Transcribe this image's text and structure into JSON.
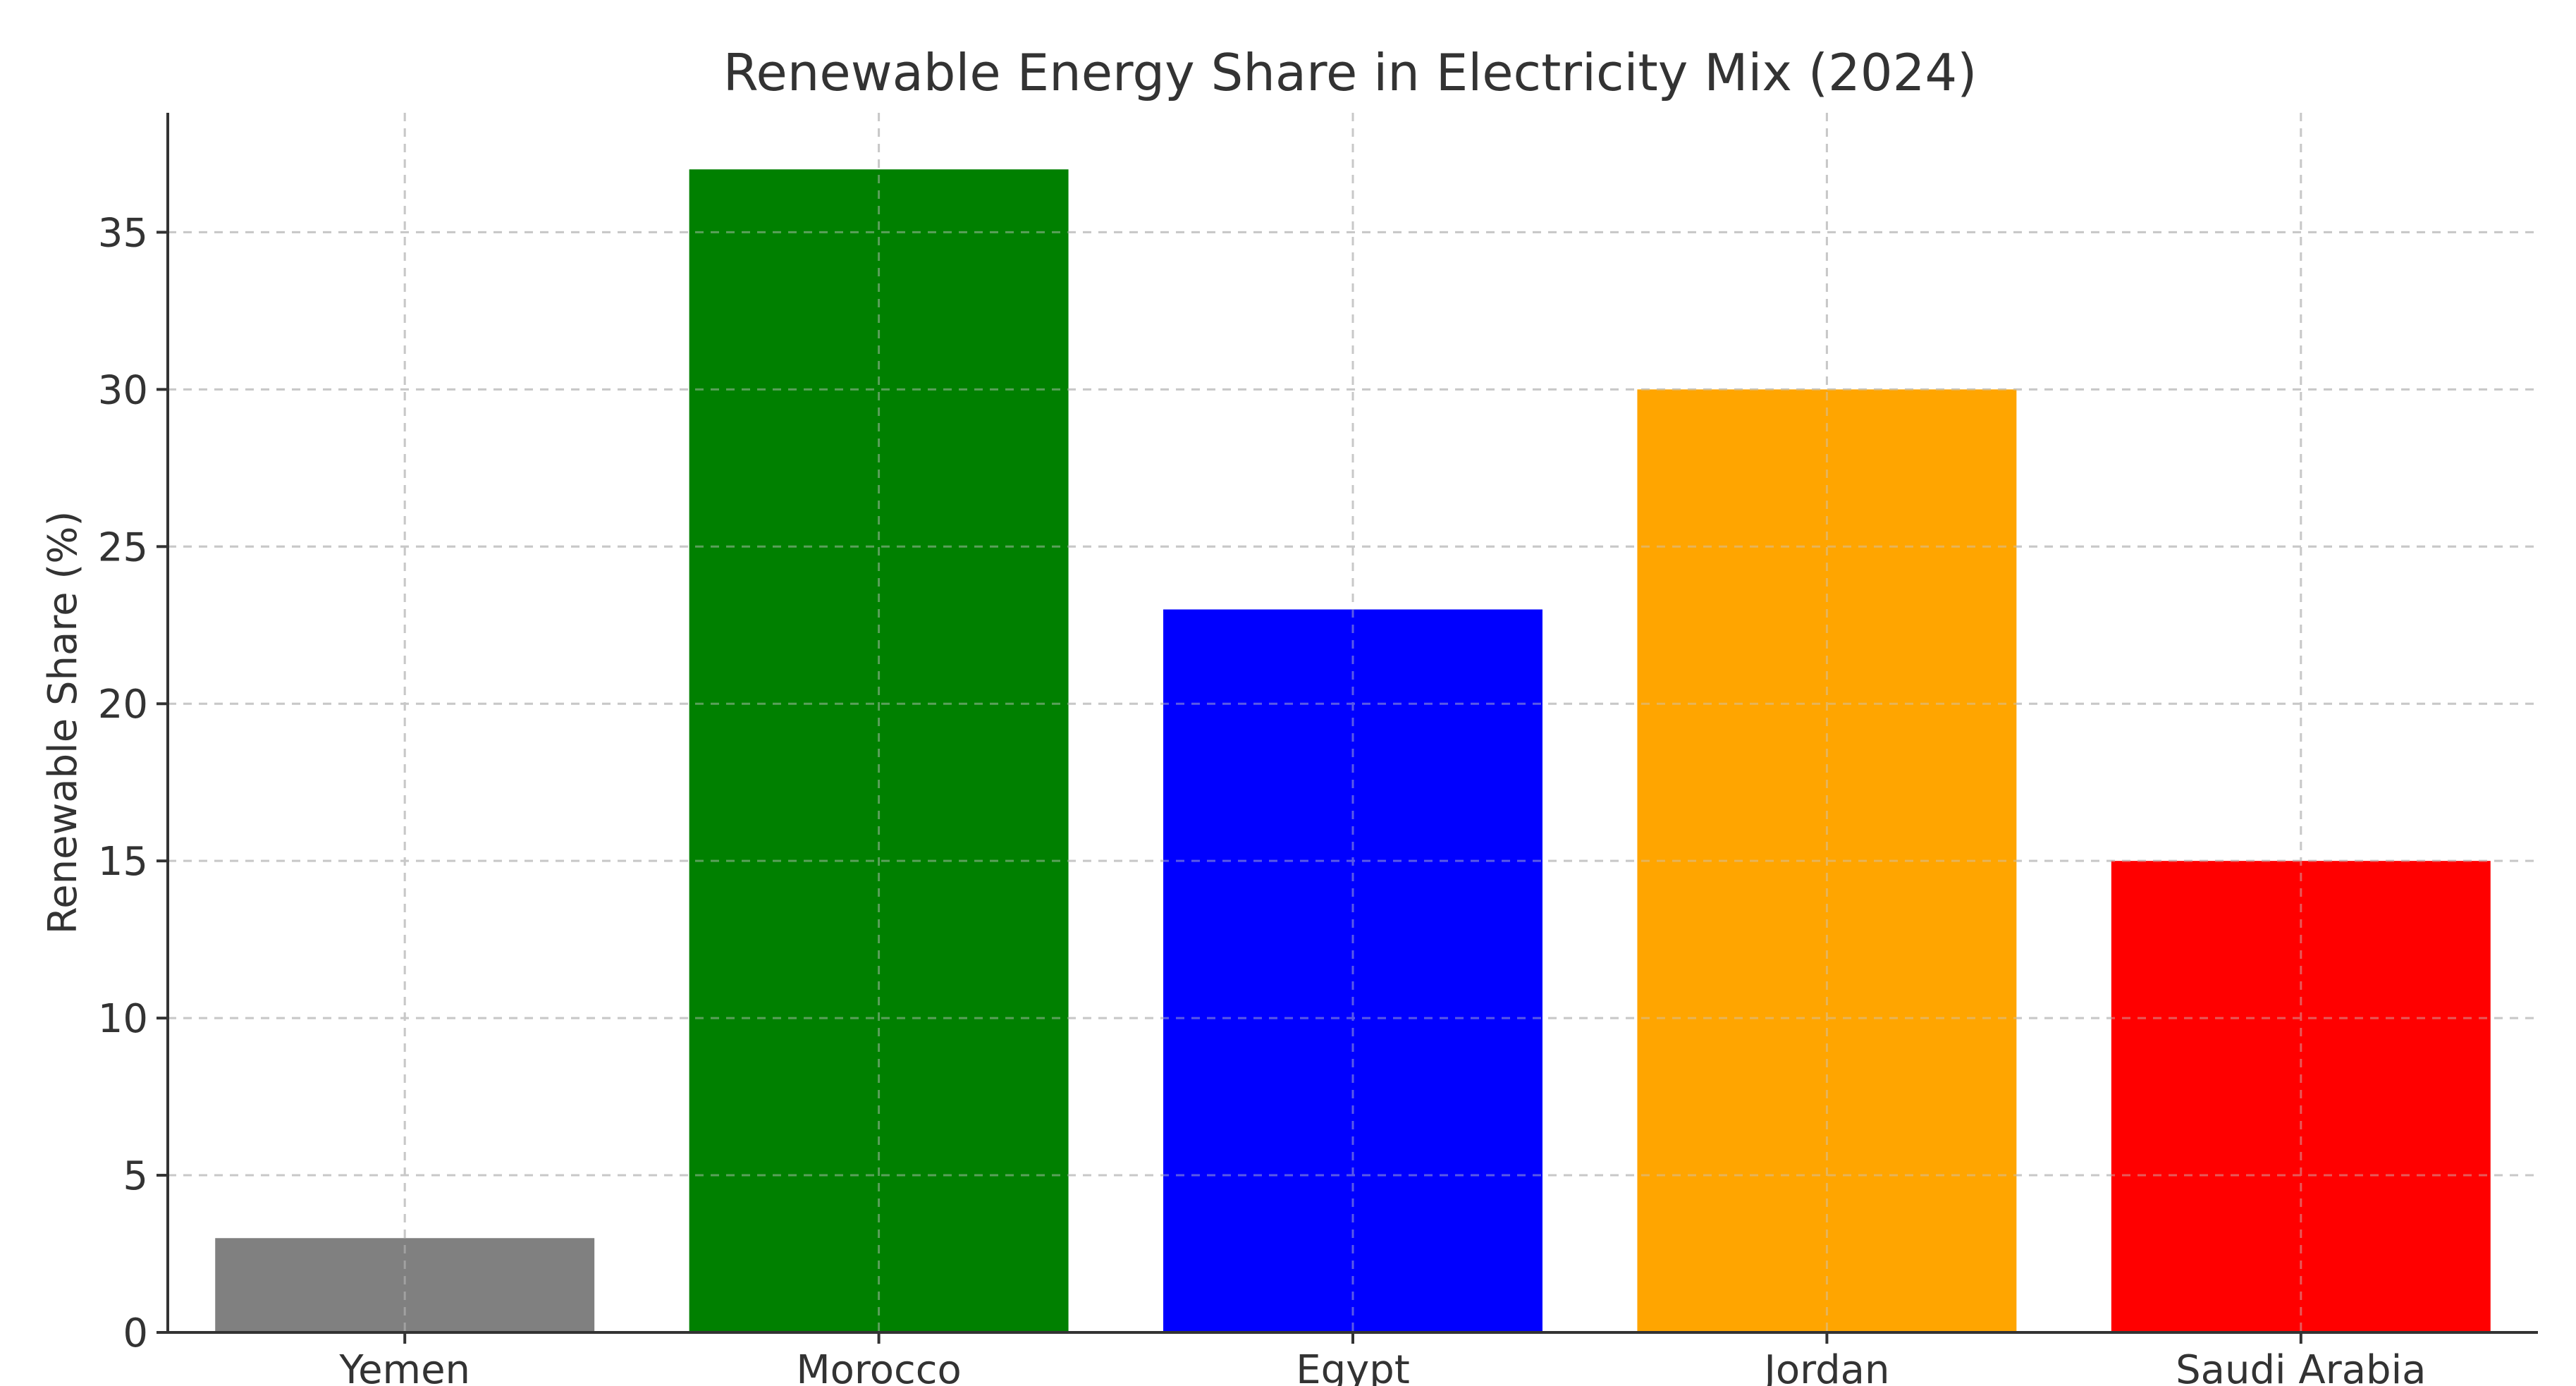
{
  "chart_data": {
    "type": "bar",
    "title": "Renewable Energy Share in Electricity Mix (2024)",
    "xlabel": "",
    "ylabel": "Renewable Share (%)",
    "categories": [
      "Yemen",
      "Morocco",
      "Egypt",
      "Jordan",
      "Saudi Arabia"
    ],
    "values": [
      3,
      37,
      23,
      30,
      15
    ],
    "colors": [
      "#808080",
      "#008000",
      "#0000ff",
      "#ffa500",
      "#ff0000"
    ],
    "ylim": [
      0,
      38.8
    ],
    "yticks": [
      0,
      5,
      10,
      15,
      20,
      25,
      30,
      35
    ],
    "grid": true
  }
}
